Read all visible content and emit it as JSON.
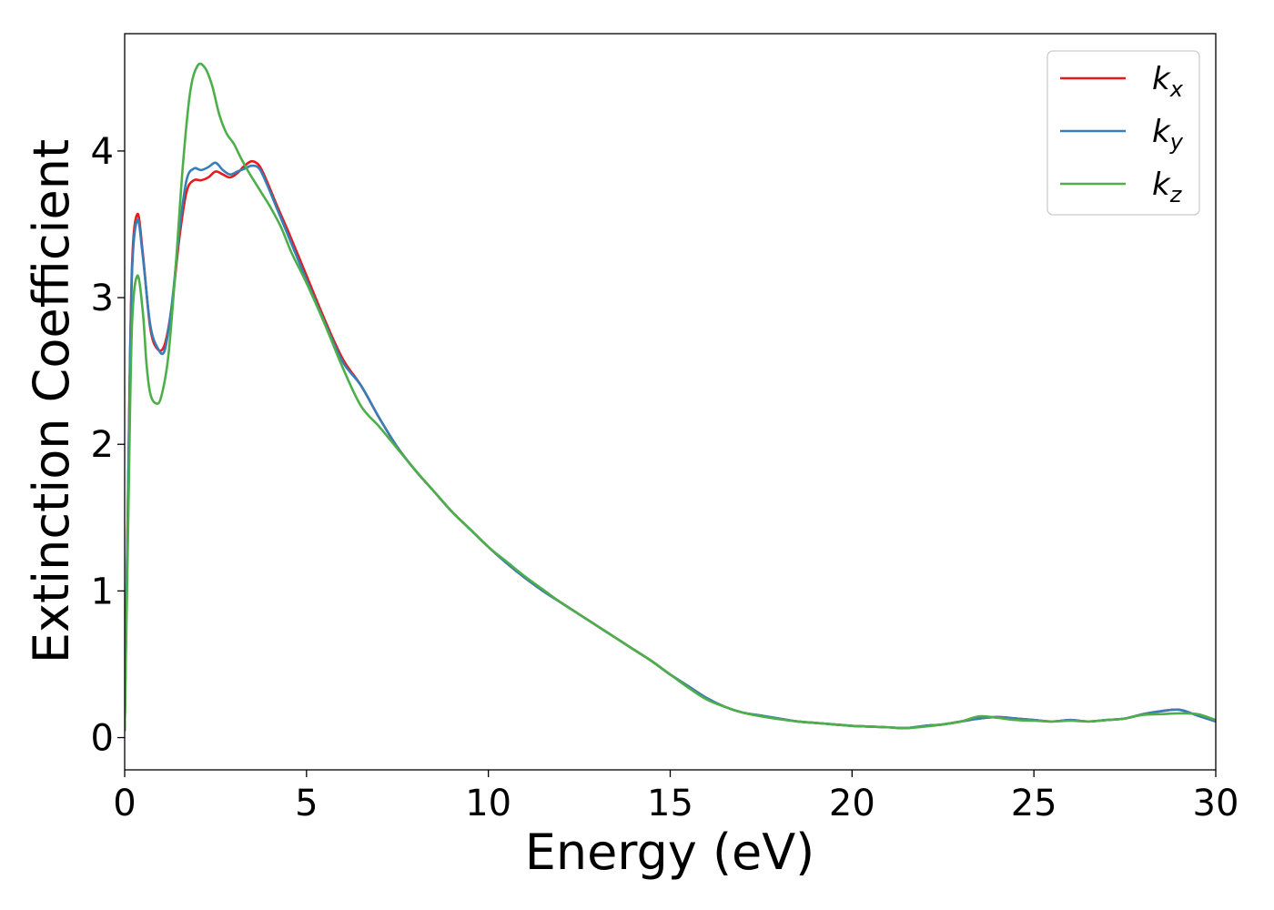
{
  "chart_data": {
    "type": "line",
    "xlabel": "Energy (eV)",
    "ylabel": "Extinction Coefficient",
    "xlim": [
      0,
      30
    ],
    "ylim": [
      -0.22,
      4.8
    ],
    "xticks": [
      0,
      5,
      10,
      15,
      20,
      25,
      30
    ],
    "yticks": [
      0,
      1,
      2,
      3,
      4
    ],
    "grid": false,
    "legend_position": "top-right",
    "series": [
      {
        "name": "k",
        "subscript": "x",
        "color": "#e41a1c",
        "x": [
          0,
          0.1,
          0.2,
          0.35,
          0.5,
          0.7,
          0.9,
          1.1,
          1.3,
          1.5,
          1.7,
          1.9,
          2.1,
          2.3,
          2.5,
          2.7,
          2.9,
          3.1,
          3.3,
          3.5,
          3.7,
          3.9,
          4.2,
          4.5,
          5,
          5.5,
          6,
          6.5,
          7,
          7.5,
          8,
          8.5,
          9,
          9.5,
          10,
          10.5,
          11,
          11.5,
          12,
          12.5,
          13,
          13.5,
          14,
          14.5,
          15,
          15.5,
          16,
          16.5,
          17,
          17.5,
          18,
          18.5,
          19,
          19.5,
          20,
          20.5,
          21,
          21.5,
          22,
          22.5,
          23,
          23.5,
          24,
          24.5,
          25,
          25.5,
          26,
          26.5,
          27,
          27.5,
          28,
          28.5,
          29,
          29.5,
          30
        ],
        "y": [
          0.05,
          1.8,
          3.2,
          3.57,
          3.3,
          2.8,
          2.65,
          2.68,
          2.95,
          3.4,
          3.72,
          3.8,
          3.8,
          3.82,
          3.86,
          3.84,
          3.82,
          3.85,
          3.9,
          3.93,
          3.9,
          3.8,
          3.62,
          3.45,
          3.15,
          2.85,
          2.58,
          2.4,
          2.18,
          1.98,
          1.82,
          1.68,
          1.54,
          1.42,
          1.3,
          1.19,
          1.09,
          1.0,
          0.92,
          0.84,
          0.76,
          0.68,
          0.6,
          0.52,
          0.43,
          0.35,
          0.27,
          0.21,
          0.17,
          0.15,
          0.13,
          0.11,
          0.1,
          0.09,
          0.08,
          0.075,
          0.07,
          0.065,
          0.08,
          0.09,
          0.11,
          0.13,
          0.14,
          0.13,
          0.12,
          0.11,
          0.12,
          0.11,
          0.12,
          0.13,
          0.16,
          0.18,
          0.19,
          0.15,
          0.11
        ]
      },
      {
        "name": "k",
        "subscript": "y",
        "color": "#377eb8",
        "x": [
          0,
          0.1,
          0.2,
          0.35,
          0.5,
          0.7,
          0.9,
          1.1,
          1.3,
          1.5,
          1.7,
          1.9,
          2.1,
          2.3,
          2.5,
          2.7,
          2.9,
          3.1,
          3.3,
          3.5,
          3.7,
          3.9,
          4.2,
          4.5,
          5,
          5.5,
          6,
          6.5,
          7,
          7.5,
          8,
          8.5,
          9,
          9.5,
          10,
          10.5,
          11,
          11.5,
          12,
          12.5,
          13,
          13.5,
          14,
          14.5,
          15,
          15.5,
          16,
          16.5,
          17,
          17.5,
          18,
          18.5,
          19,
          19.5,
          20,
          20.5,
          21,
          21.5,
          22,
          22.5,
          23,
          23.5,
          24,
          24.5,
          25,
          25.5,
          26,
          26.5,
          27,
          27.5,
          28,
          28.5,
          29,
          29.5,
          30
        ],
        "y": [
          0.05,
          1.75,
          3.15,
          3.53,
          3.28,
          2.82,
          2.66,
          2.64,
          2.96,
          3.45,
          3.8,
          3.88,
          3.87,
          3.89,
          3.92,
          3.87,
          3.84,
          3.86,
          3.88,
          3.9,
          3.88,
          3.78,
          3.6,
          3.42,
          3.12,
          2.83,
          2.56,
          2.4,
          2.18,
          1.98,
          1.82,
          1.68,
          1.54,
          1.42,
          1.3,
          1.19,
          1.09,
          1.0,
          0.92,
          0.84,
          0.76,
          0.68,
          0.6,
          0.52,
          0.43,
          0.35,
          0.27,
          0.21,
          0.17,
          0.15,
          0.13,
          0.11,
          0.1,
          0.09,
          0.08,
          0.075,
          0.07,
          0.065,
          0.08,
          0.09,
          0.11,
          0.13,
          0.14,
          0.13,
          0.12,
          0.11,
          0.12,
          0.11,
          0.12,
          0.13,
          0.16,
          0.18,
          0.19,
          0.15,
          0.11
        ]
      },
      {
        "name": "k",
        "subscript": "z",
        "color": "#4daf4a",
        "x": [
          0,
          0.1,
          0.2,
          0.35,
          0.5,
          0.6,
          0.7,
          0.85,
          1.0,
          1.2,
          1.4,
          1.6,
          1.8,
          2.0,
          2.2,
          2.4,
          2.6,
          2.8,
          3.0,
          3.2,
          3.4,
          3.6,
          3.8,
          4.0,
          4.3,
          4.6,
          5,
          5.5,
          6,
          6.5,
          7,
          7.5,
          8,
          8.5,
          9,
          9.5,
          10,
          10.5,
          11,
          11.5,
          12,
          12.5,
          13,
          13.5,
          14,
          14.5,
          15,
          15.5,
          16,
          16.5,
          17,
          17.5,
          18,
          18.5,
          19,
          19.5,
          20,
          20.5,
          21,
          21.5,
          22,
          22.5,
          23,
          23.5,
          24,
          24.5,
          25,
          25.5,
          26,
          26.5,
          27,
          27.5,
          28,
          28.5,
          29,
          29.5,
          30
        ],
        "y": [
          0.05,
          1.5,
          2.8,
          3.15,
          2.9,
          2.55,
          2.35,
          2.28,
          2.32,
          2.6,
          3.2,
          3.9,
          4.4,
          4.58,
          4.57,
          4.45,
          4.25,
          4.12,
          4.05,
          3.95,
          3.86,
          3.78,
          3.7,
          3.62,
          3.48,
          3.3,
          3.1,
          2.82,
          2.52,
          2.26,
          2.12,
          1.97,
          1.82,
          1.68,
          1.54,
          1.42,
          1.3,
          1.2,
          1.1,
          1.01,
          0.92,
          0.84,
          0.76,
          0.68,
          0.6,
          0.52,
          0.43,
          0.34,
          0.26,
          0.21,
          0.17,
          0.145,
          0.125,
          0.11,
          0.1,
          0.09,
          0.08,
          0.075,
          0.07,
          0.065,
          0.075,
          0.09,
          0.11,
          0.145,
          0.135,
          0.12,
          0.115,
          0.11,
          0.115,
          0.11,
          0.12,
          0.13,
          0.155,
          0.16,
          0.165,
          0.16,
          0.12
        ]
      }
    ]
  }
}
